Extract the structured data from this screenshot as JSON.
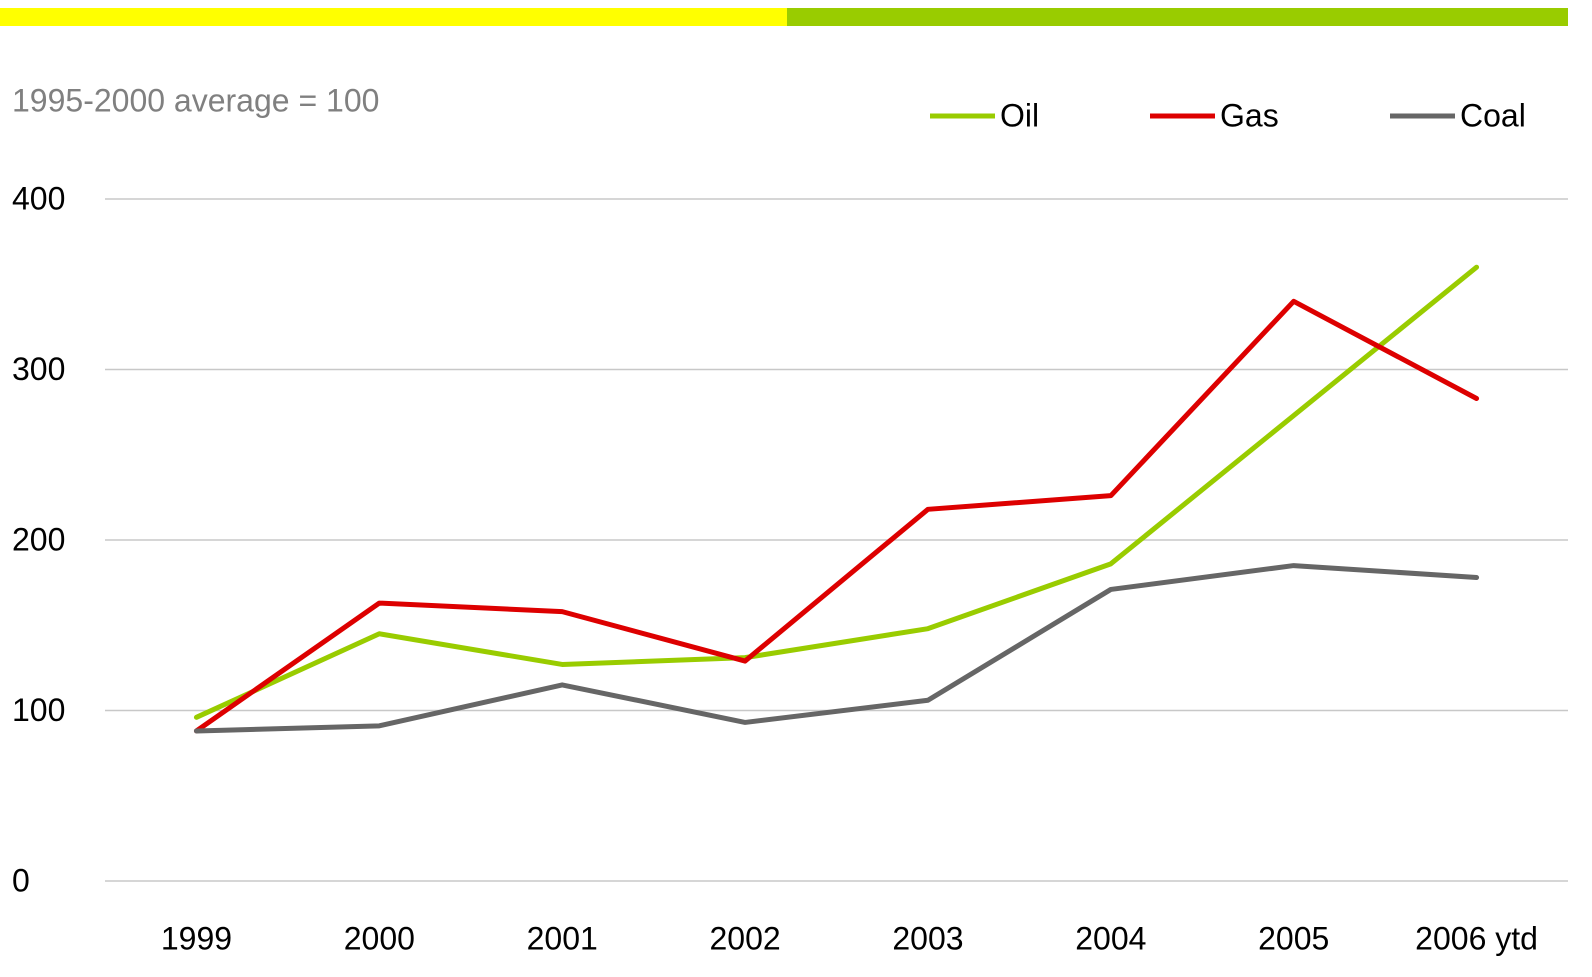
{
  "chart_data": {
    "type": "line",
    "subtitle": "1995-2000 average = 100",
    "categories": [
      "1999",
      "2000",
      "2001",
      "2002",
      "2003",
      "2004",
      "2005",
      "2006 ytd"
    ],
    "series": [
      {
        "name": "Oil",
        "color": "#99cc00",
        "values": [
          96,
          145,
          127,
          131,
          148,
          186,
          273,
          360
        ]
      },
      {
        "name": "Gas",
        "color": "#dd0000",
        "values": [
          88,
          163,
          158,
          129,
          218,
          226,
          340,
          283
        ]
      },
      {
        "name": "Coal",
        "color": "#666666",
        "values": [
          88,
          91,
          115,
          93,
          106,
          171,
          185,
          178
        ]
      }
    ],
    "ylim": [
      0,
      400
    ],
    "yticks": [
      0,
      100,
      200,
      300,
      400
    ],
    "grid": true,
    "legend": "top-right"
  }
}
